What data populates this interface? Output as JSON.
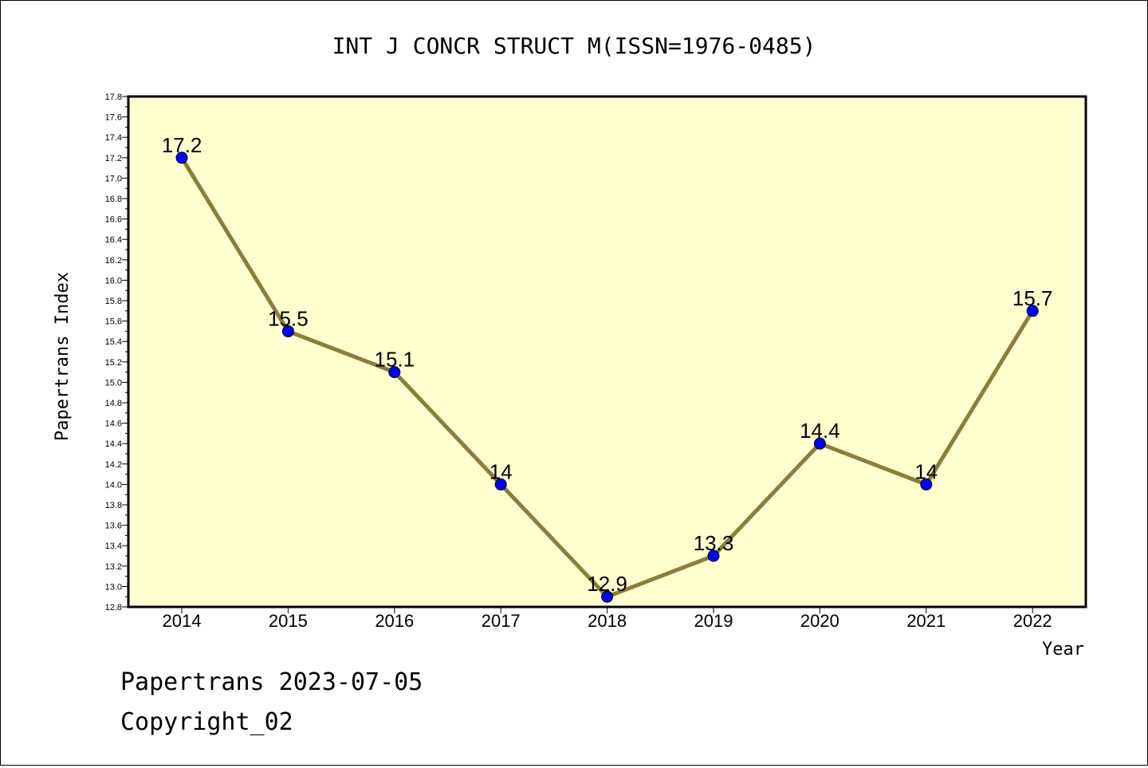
{
  "chart_data": {
    "type": "line",
    "title": "INT J CONCR STRUCT M(ISSN=1976-0485)",
    "xlabel": "Year",
    "ylabel": "Papertrans Index",
    "categories": [
      "2014",
      "2015",
      "2016",
      "2017",
      "2018",
      "2019",
      "2020",
      "2021",
      "2022"
    ],
    "values": [
      17.2,
      15.5,
      15.1,
      14.0,
      12.9,
      13.3,
      14.4,
      14.0,
      15.7
    ],
    "data_labels": [
      "17.2",
      "15.5",
      "15.1",
      "14",
      "12.9",
      "13.3",
      "14.4",
      "14",
      "15.7"
    ],
    "ylim": [
      12.8,
      17.8
    ],
    "ytick_labels": [
      "12.8",
      "13.0",
      "13.2",
      "13.4",
      "13.6",
      "13.8",
      "14.0",
      "14.2",
      "14.4",
      "14.6",
      "14.8",
      "15.0",
      "15.2",
      "15.4",
      "15.6",
      "15.8",
      "16.0",
      "16.2",
      "16.4",
      "16.6",
      "16.8",
      "17.0",
      "17.2",
      "17.4",
      "17.6",
      "17.8"
    ],
    "grid": false,
    "colors": {
      "plot_background": "#ffffd0",
      "line": "#8b7d3a",
      "marker": "#0000ff"
    }
  },
  "footer": {
    "line1": "Papertrans 2023-07-05",
    "line2": "Copyright_02"
  }
}
